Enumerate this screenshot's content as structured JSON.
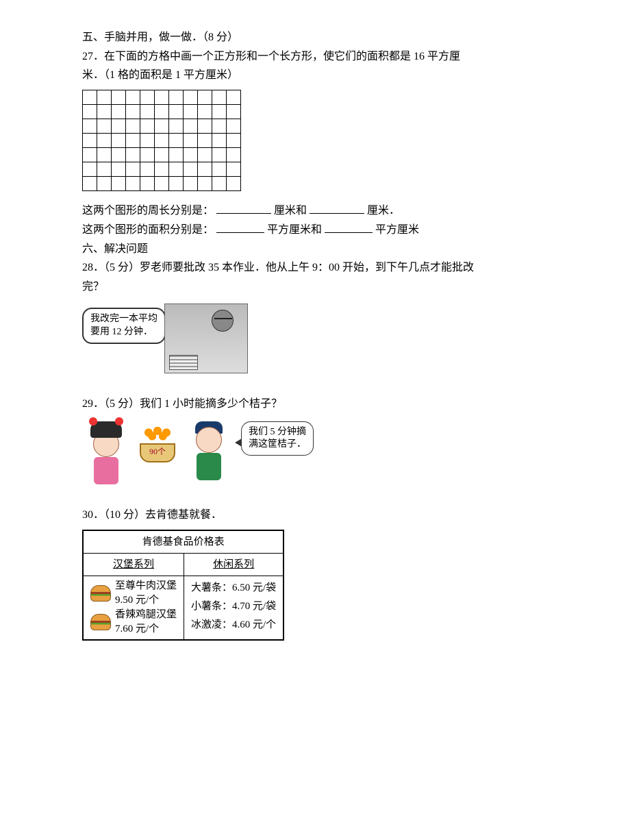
{
  "section5": {
    "heading": "五、手脑并用，做一做．（8 分）",
    "q27_line1": "27．在下面的方格中画一个正方形和一个长方形，使它们的面积都是 16 平方厘",
    "q27_line2": "米．（1 格的面积是 1 平方厘米）",
    "grid": {
      "rows": 7,
      "cols": 11
    },
    "perimeter_prefix": "这两个图形的周长分别是：",
    "perimeter_unit1": "厘米和",
    "perimeter_unit2": "厘米．",
    "area_prefix": "这两个图形的面积分别是：",
    "area_unit1": "平方厘米和",
    "area_unit2": "平方厘米"
  },
  "section6": {
    "heading": "六、解决问题",
    "q28_line1": "28．（5 分）罗老师要批改 35 本作业．他从上午 9：00 开始，到下午几点才能批改",
    "q28_line2": "完？",
    "q28_bubble_line1": "我改完一本平均",
    "q28_bubble_line2": "要用 12 分钟．",
    "q29": "29．（5 分）我们 1 小时能摘多少个桔子？",
    "q29_bubble_line1": "我们 5 分钟摘",
    "q29_bubble_line2": "满这筐桔子．",
    "q29_basket_label": "90个",
    "q30": "30．（10 分）去肯德基就餐．",
    "kfc": {
      "title": "肯德基食品价格表",
      "col1_head": "汉堡系列",
      "col2_head": "休闲系列",
      "item1_name": "至尊牛肉汉堡",
      "item1_price": "9.50 元/个",
      "item2_name": "香辣鸡腿汉堡",
      "item2_price": "7.60 元/个",
      "snack1": "大薯条：6.50 元/袋",
      "snack2": "小薯条：4.70 元/袋",
      "snack3": "冰激凌：4.60 元/个"
    }
  }
}
